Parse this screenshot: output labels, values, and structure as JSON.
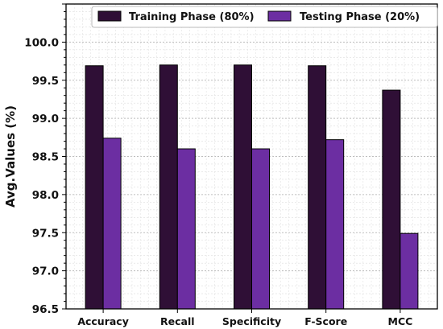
{
  "chart_data": {
    "type": "bar",
    "categories": [
      "Accuracy",
      "Recall",
      "Specificity",
      "F-Score",
      "MCC"
    ],
    "series": [
      {
        "name": "Training Phase (80%)",
        "color": "#2f0f36",
        "values": [
          99.69,
          99.7,
          99.7,
          99.69,
          99.37
        ]
      },
      {
        "name": "Testing Phase (20%)",
        "color": "#6c2ea2",
        "values": [
          98.74,
          98.6,
          98.6,
          98.72,
          97.49
        ]
      }
    ],
    "ylabel": "Avg.Values (%)",
    "ylim": [
      96.5,
      100.5
    ],
    "yticks": [
      "96.5",
      "97.0",
      "97.5",
      "98.0",
      "98.5",
      "99.0",
      "99.5",
      "100.0"
    ],
    "grid": true,
    "legend": "top"
  }
}
